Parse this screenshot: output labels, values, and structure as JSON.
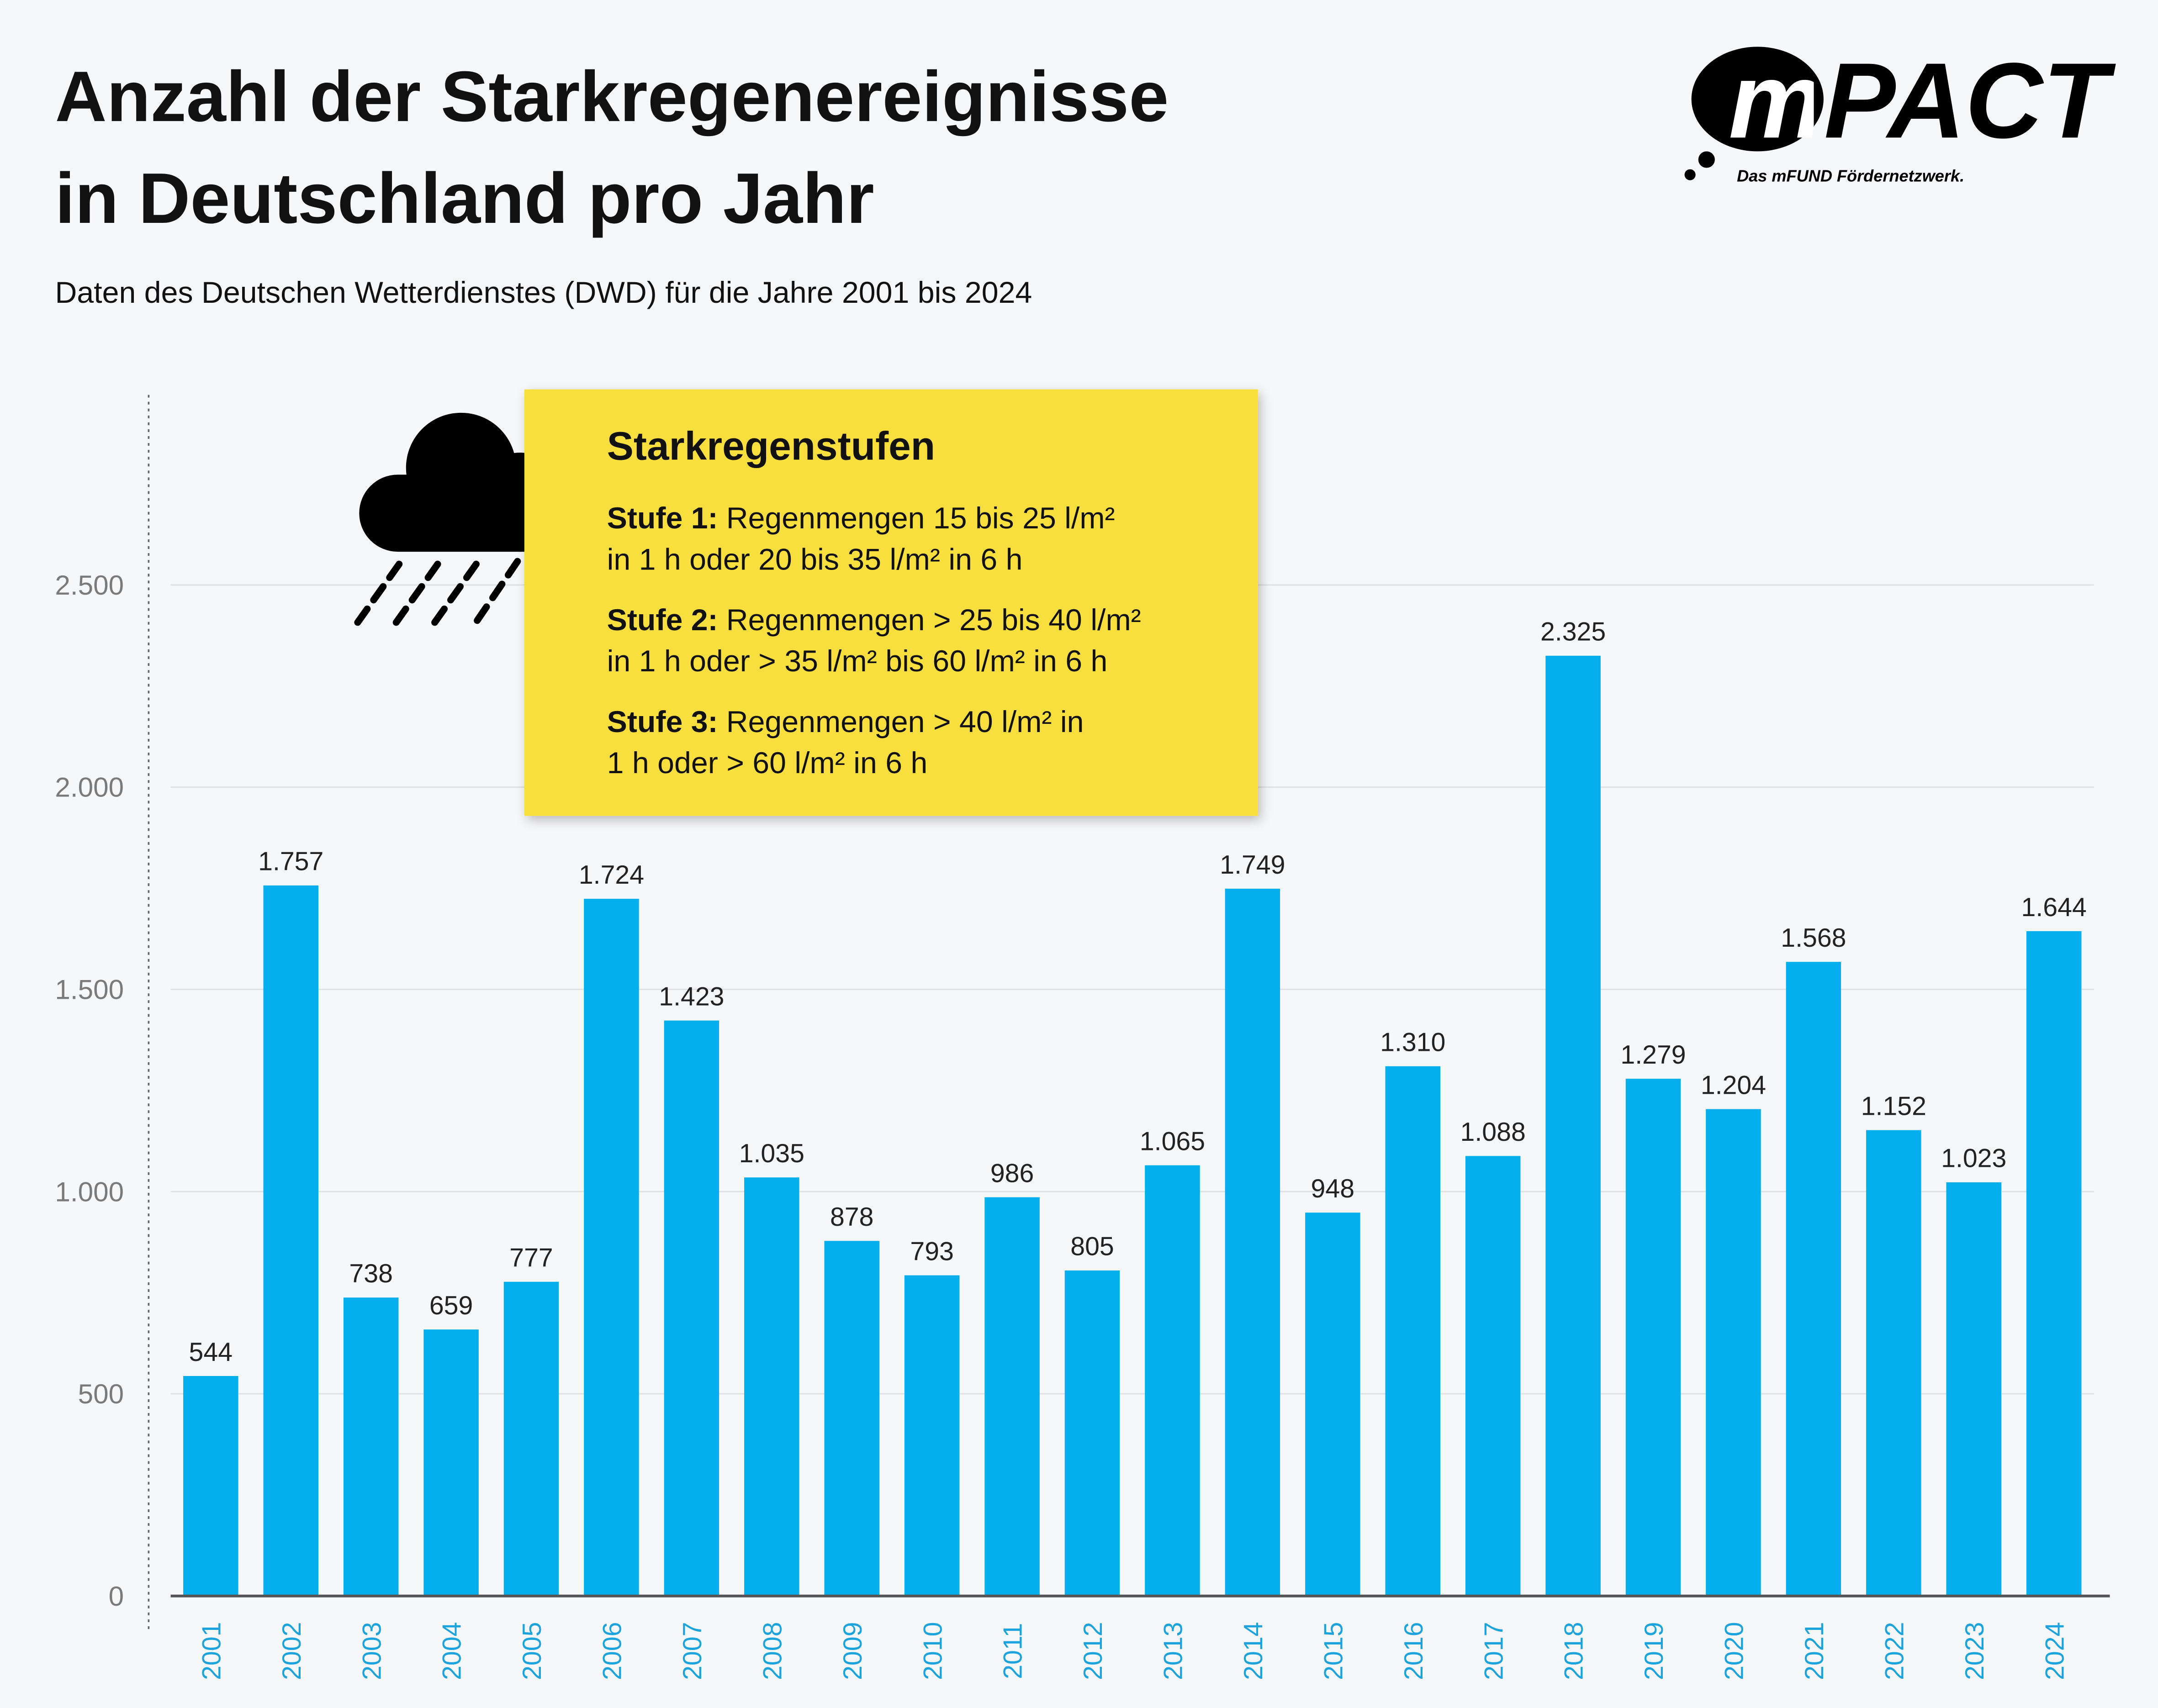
{
  "chart_data": {
    "type": "bar",
    "title": [
      "Anzahl der Starkregenereignisse",
      "in Deutschland pro Jahr"
    ],
    "subtitle": "Daten des Deutschen Wetterdienstes (DWD) für die Jahre 2001 bis 2024",
    "logo": {
      "name": "mPACT",
      "tagline": "Das mFUND Fördernetzwerk."
    },
    "annotation": {
      "title": "Starkregenstufen",
      "items": [
        {
          "label": "Stufe 1:",
          "text": "Regenmengen 15 bis 25 l/m²",
          "text2": "in 1 h oder 20 bis 35 l/m² in 6 h"
        },
        {
          "label": "Stufe 2:",
          "text": "Regenmengen > 25 bis 40 l/m²",
          "text2": "in 1 h oder > 35 l/m² bis 60 l/m² in 6 h"
        },
        {
          "label": "Stufe 3:",
          "text": "Regenmengen > 40 l/m² in",
          "text2": "1 h oder > 60 l/m² in 6 h"
        }
      ]
    },
    "categories": [
      "2001",
      "2002",
      "2003",
      "2004",
      "2005",
      "2006",
      "2007",
      "2008",
      "2009",
      "2010",
      "2011",
      "2012",
      "2013",
      "2014",
      "2015",
      "2016",
      "2017",
      "2018",
      "2019",
      "2020",
      "2021",
      "2022",
      "2023",
      "2024"
    ],
    "values": [
      544,
      1757,
      738,
      659,
      777,
      1724,
      1423,
      1035,
      878,
      793,
      986,
      805,
      1065,
      1749,
      948,
      1310,
      1088,
      2325,
      1279,
      1204,
      1568,
      1152,
      1023,
      1644
    ],
    "value_labels": [
      "544",
      "1.757",
      "738",
      "659",
      "777",
      "1.724",
      "1.423",
      "1.035",
      "878",
      "793",
      "986",
      "805",
      "1.065",
      "1.749",
      "948",
      "1.310",
      "1.088",
      "2.325",
      "1.279",
      "1.204",
      "1.568",
      "1.152",
      "1.023",
      "1.644"
    ],
    "color": "#05aeec",
    "ylim": [
      0,
      2970
    ],
    "yticks": [
      0,
      500,
      {
        "value": 1000,
        "label": "1.000"
      },
      {
        "value": 1500,
        "label": "1.500"
      },
      {
        "value": 2000,
        "label": "2.000"
      },
      {
        "value": 2500,
        "label": "2.500"
      }
    ],
    "grid": true
  }
}
